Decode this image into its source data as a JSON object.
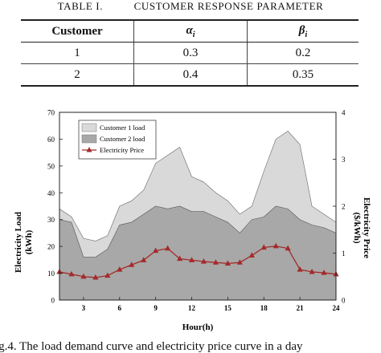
{
  "table": {
    "caption_prefix": "TABLE I.",
    "caption_title": "CUSTOMER RESPONSE PARAMETER",
    "headers": {
      "customer": "Customer",
      "alpha_symbol": "α",
      "alpha_sub": "i",
      "beta_symbol": "β",
      "beta_sub": "i"
    },
    "rows": [
      {
        "customer": "1",
        "alpha": "0.3",
        "beta": "0.2"
      },
      {
        "customer": "2",
        "alpha": "0.4",
        "beta": "0.35"
      }
    ]
  },
  "figure": {
    "caption": "ig.4. The load demand curve and electricity price curve in a day"
  },
  "chart_data": {
    "type": "area",
    "xlabel": "Hour(h)",
    "ylabel_left_line1": "Electricity Load",
    "ylabel_left_line2": "(kWh)",
    "ylabel_right_line1": "Electricity Price",
    "ylabel_right_line2": "($/kWh)",
    "x": [
      1,
      2,
      3,
      4,
      5,
      6,
      7,
      8,
      9,
      10,
      11,
      12,
      13,
      14,
      15,
      16,
      17,
      18,
      19,
      20,
      21,
      22,
      23,
      24
    ],
    "xlim": [
      1,
      24
    ],
    "xticks": [
      "3",
      "6",
      "9",
      "12",
      "15",
      "18",
      "21",
      "24"
    ],
    "ylim_left": [
      0,
      70
    ],
    "yticks_left": [
      "0",
      "10",
      "20",
      "30",
      "40",
      "50",
      "60",
      "70"
    ],
    "ylim_right": [
      0,
      4
    ],
    "yticks_right": [
      "0",
      "1",
      "2",
      "3",
      "4"
    ],
    "legend_position": "top-left",
    "series": [
      {
        "name": "Customer 1 load",
        "axis": "left",
        "color": "#d9d9d9",
        "stacked_total": true,
        "values": [
          34,
          31,
          23,
          22,
          24,
          35,
          37,
          41,
          51,
          54,
          57,
          46,
          44,
          40,
          37,
          32,
          35,
          48,
          60,
          63,
          58,
          35,
          32,
          29
        ]
      },
      {
        "name": "Customer 2 load",
        "axis": "left",
        "color": "#a8a8a8",
        "values": [
          30,
          29,
          16,
          16,
          19,
          28,
          29,
          32,
          35,
          34,
          35,
          33,
          33,
          31,
          29,
          25,
          30,
          31,
          35,
          34,
          30,
          28,
          27,
          25
        ]
      },
      {
        "name": "Electricity Price",
        "axis": "right",
        "color": "#a52a2a",
        "marker": "triangle",
        "values": [
          0.6,
          0.55,
          0.5,
          0.48,
          0.52,
          0.65,
          0.75,
          0.85,
          1.05,
          1.1,
          0.88,
          0.85,
          0.82,
          0.8,
          0.78,
          0.8,
          0.95,
          1.12,
          1.15,
          1.1,
          0.65,
          0.6,
          0.58,
          0.55
        ]
      }
    ]
  }
}
